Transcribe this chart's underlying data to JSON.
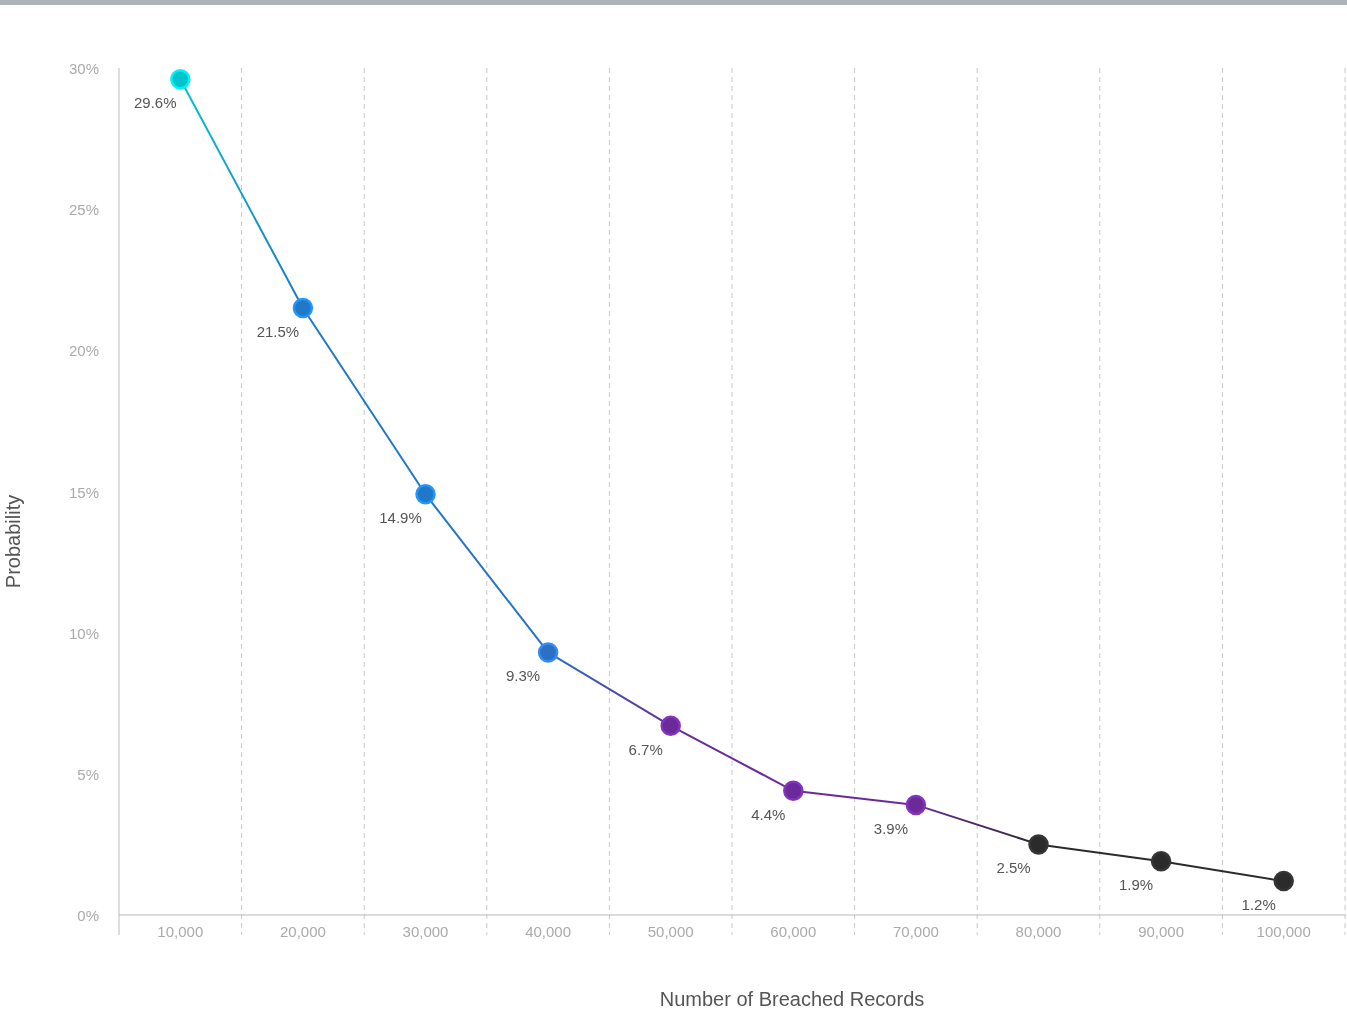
{
  "chart_data": {
    "type": "line",
    "xlabel": "Number of Breached Records",
    "ylabel": "Probability",
    "categories": [
      "10,000",
      "20,000",
      "30,000",
      "40,000",
      "50,000",
      "60,000",
      "70,000",
      "80,000",
      "90,000",
      "100,000"
    ],
    "values": [
      29.6,
      21.5,
      14.9,
      9.3,
      6.7,
      4.4,
      3.9,
      2.5,
      1.9,
      1.2
    ],
    "value_labels": [
      "29.6%",
      "21.5%",
      "14.9%",
      "9.3%",
      "6.7%",
      "4.4%",
      "3.9%",
      "2.5%",
      "1.9%",
      "1.2%"
    ],
    "colors": [
      "#00c4cc",
      "#1f78c8",
      "#1f78c8",
      "#2a70c4",
      "#6a2a9a",
      "#6a2a9a",
      "#6a2a9a",
      "#2b2b2b",
      "#2b2b2b",
      "#2b2b2b"
    ],
    "ylim": [
      0,
      30
    ],
    "yticks": [
      {
        "value": 0,
        "label": "0%"
      },
      {
        "value": 5,
        "label": "5%"
      },
      {
        "value": 10,
        "label": "10%"
      },
      {
        "value": 15,
        "label": "15%"
      },
      {
        "value": 20,
        "label": "20%"
      },
      {
        "value": 25,
        "label": "25%"
      },
      {
        "value": 30,
        "label": "30%"
      }
    ],
    "grid": "x",
    "marker": "circle",
    "line_style": "solid"
  }
}
